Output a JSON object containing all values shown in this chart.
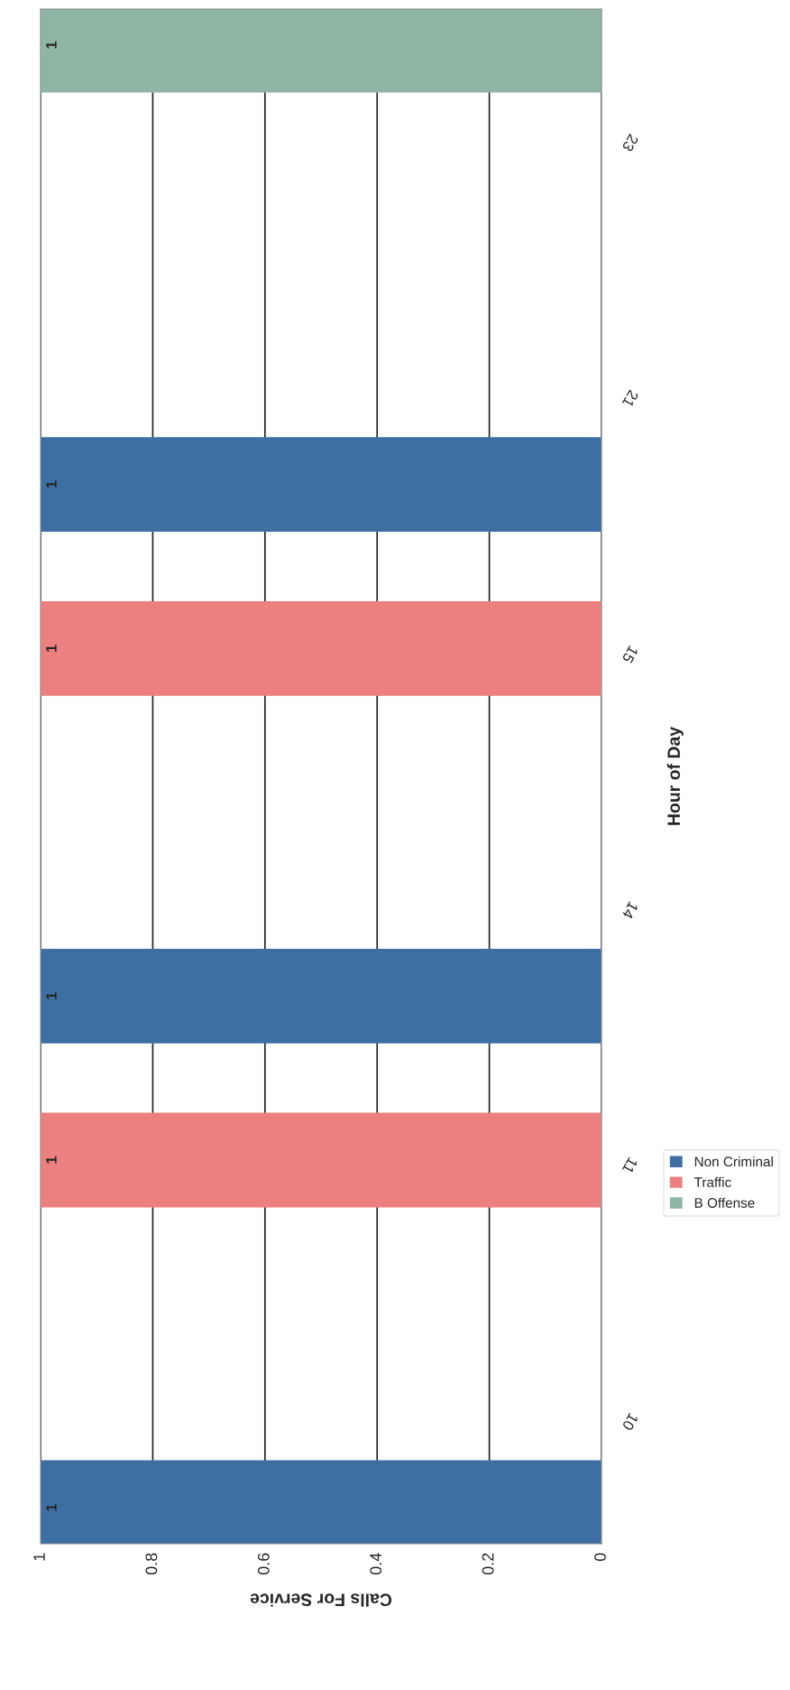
{
  "chart_data": {
    "type": "bar",
    "orientation": "horizontal",
    "xlabel": "Calls For Service",
    "ylabel": "Hour of Day",
    "categories": [
      "23",
      "21",
      "15",
      "14",
      "11",
      "10"
    ],
    "series": [
      {
        "name": "Non Criminal",
        "color": "#3d6fa3",
        "values": [
          null,
          1,
          null,
          1,
          null,
          1
        ]
      },
      {
        "name": "Traffic",
        "color": "#ec8080",
        "values": [
          null,
          null,
          1,
          null,
          1,
          null
        ]
      },
      {
        "name": "B Offense",
        "color": "#8fb5a5",
        "values": [
          1,
          null,
          null,
          null,
          null,
          null
        ]
      }
    ],
    "xlim": [
      1,
      0
    ],
    "xticks": [
      0,
      0.2,
      0.4,
      0.6,
      0.8,
      1
    ],
    "grid": "x",
    "legend": "right",
    "data_labels": true
  }
}
